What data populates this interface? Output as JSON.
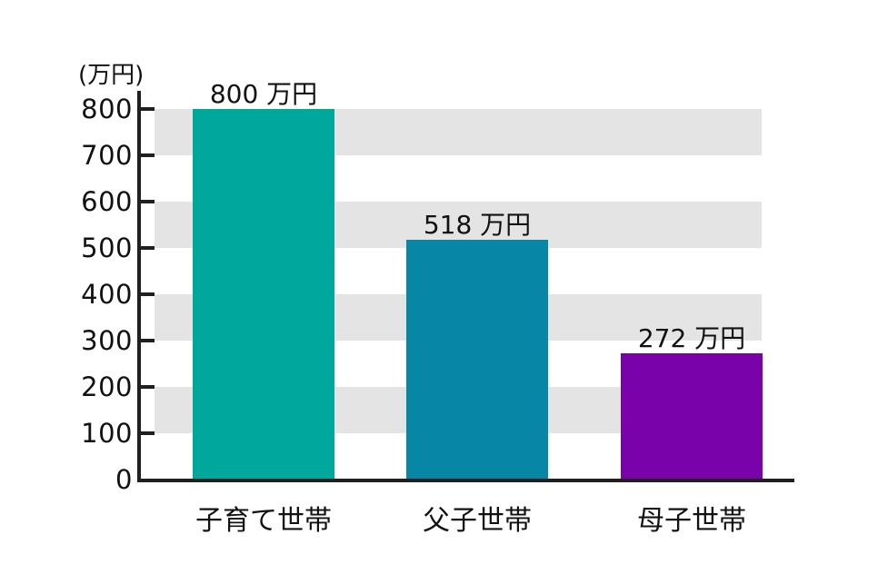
{
  "chart_data": {
    "type": "bar",
    "title": "",
    "unit_label": "(万円)",
    "categories": [
      "子育て世帯",
      "父子世帯",
      "母子世帯"
    ],
    "values": [
      800,
      518,
      272
    ],
    "value_labels": [
      "800 万円",
      "518 万円",
      "272 万円"
    ],
    "value_suffix": "万円",
    "ylabel": "(万円)",
    "ylim": [
      0,
      800
    ],
    "ytick_interval": 100,
    "yticks": [
      0,
      100,
      200,
      300,
      400,
      500,
      600,
      700,
      800
    ],
    "grid": "alternating horizontal gray bands (100-200, 300-400, 500-600, 700-800)",
    "legend": "none",
    "bar_colors": [
      "#00a89c",
      "#0886a6",
      "#7a02aa"
    ],
    "band_color": "#e4e4e4",
    "axis_color": "#231f20",
    "text_color": "#111111"
  }
}
